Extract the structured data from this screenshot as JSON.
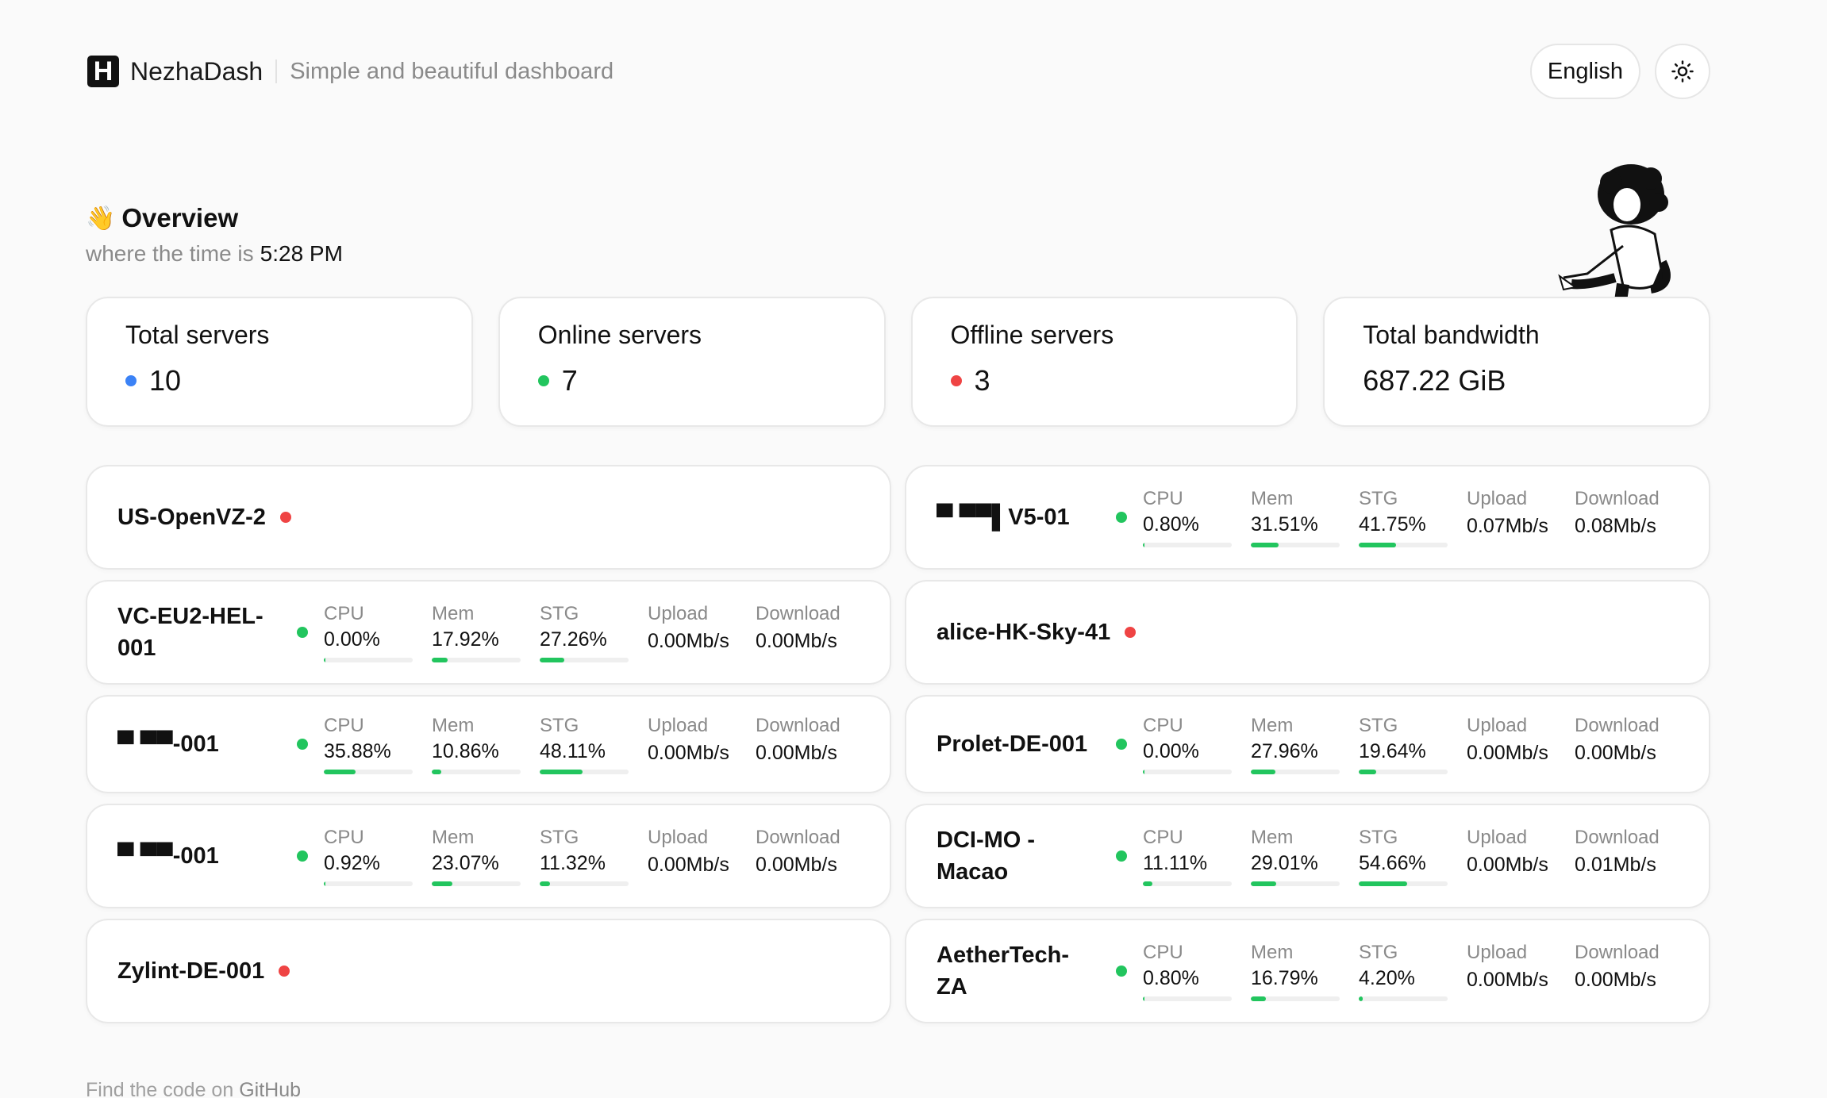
{
  "header": {
    "brand": "NezhaDash",
    "tagline": "Simple and beautiful dashboard",
    "language": "English",
    "theme_icon": "sun-icon"
  },
  "overview": {
    "title": "Overview",
    "emoji": "👋",
    "time_label": "where the time is",
    "time": "5:28 PM"
  },
  "stats": [
    {
      "label": "Total servers",
      "value": "10",
      "dot": "blue"
    },
    {
      "label": "Online servers",
      "value": "7",
      "dot": "green"
    },
    {
      "label": "Offline servers",
      "value": "3",
      "dot": "red"
    },
    {
      "label": "Total bandwidth",
      "value": "687.22 GiB",
      "dot": ""
    }
  ],
  "metric_labels": {
    "cpu": "CPU",
    "mem": "Mem",
    "stg": "STG",
    "up": "Upload",
    "down": "Download"
  },
  "servers": [
    {
      "name": "US-OpenVZ-2",
      "online": false
    },
    {
      "name": "▀ ▀▀▌V5-01",
      "online": true,
      "cpu": "0.80%",
      "mem": "31.51%",
      "stg": "41.75%",
      "cpu_f": 0.008,
      "mem_f": 0.3151,
      "stg_f": 0.4175,
      "up": "0.07Mb/s",
      "down": "0.08Mb/s"
    },
    {
      "name": "VC-EU2-HEL-001",
      "online": true,
      "cpu": "0.00%",
      "mem": "17.92%",
      "stg": "27.26%",
      "cpu_f": 0.0,
      "mem_f": 0.1792,
      "stg_f": 0.2726,
      "up": "0.00Mb/s",
      "down": "0.00Mb/s"
    },
    {
      "name": "alice-HK-Sky-41",
      "online": false
    },
    {
      "name": "▀ ▀▀-001",
      "online": true,
      "cpu": "35.88%",
      "mem": "10.86%",
      "stg": "48.11%",
      "cpu_f": 0.3588,
      "mem_f": 0.1086,
      "stg_f": 0.4811,
      "up": "0.00Mb/s",
      "down": "0.00Mb/s"
    },
    {
      "name": "Prolet-DE-001",
      "online": true,
      "cpu": "0.00%",
      "mem": "27.96%",
      "stg": "19.64%",
      "cpu_f": 0.0,
      "mem_f": 0.2796,
      "stg_f": 0.1964,
      "up": "0.00Mb/s",
      "down": "0.00Mb/s"
    },
    {
      "name": "▀ ▀▀-001",
      "online": true,
      "cpu": "0.92%",
      "mem": "23.07%",
      "stg": "11.32%",
      "cpu_f": 0.0092,
      "mem_f": 0.2307,
      "stg_f": 0.1132,
      "up": "0.00Mb/s",
      "down": "0.00Mb/s"
    },
    {
      "name": "DCI-MO - Macao",
      "online": true,
      "cpu": "11.11%",
      "mem": "29.01%",
      "stg": "54.66%",
      "cpu_f": 0.1111,
      "mem_f": 0.2901,
      "stg_f": 0.5466,
      "up": "0.00Mb/s",
      "down": "0.01Mb/s"
    },
    {
      "name": "Zylint-DE-001",
      "online": false
    },
    {
      "name": "AetherTech-ZA",
      "online": true,
      "cpu": "0.80%",
      "mem": "16.79%",
      "stg": "4.20%",
      "cpu_f": 0.008,
      "mem_f": 0.1679,
      "stg_f": 0.042,
      "up": "0.00Mb/s",
      "down": "0.00Mb/s"
    }
  ],
  "footer": {
    "prefix": "Find the code on",
    "link": "GitHub"
  },
  "colors": {
    "online": "#22c55e",
    "offline": "#ef4444",
    "total": "#3b82f6"
  }
}
